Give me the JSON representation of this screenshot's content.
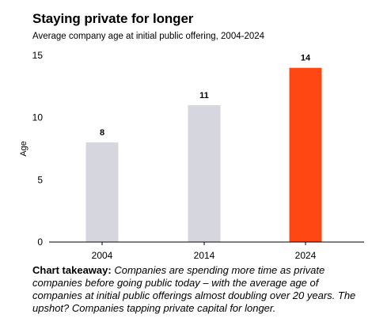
{
  "chart_data": {
    "type": "bar",
    "title": "Staying private for longer",
    "subtitle": "Average company age at initial public offering, 2004-2024",
    "categories": [
      "2004",
      "2014",
      "2024"
    ],
    "values": [
      8,
      11,
      14
    ],
    "data_labels": [
      "8",
      "11",
      "14"
    ],
    "ylabel": "Age",
    "xlabel": "",
    "ylim": [
      0,
      15
    ],
    "yticks": [
      0,
      5,
      10,
      15
    ],
    "grid": false,
    "legend": "none",
    "bar_colors": [
      "#d6d6df",
      "#d6d6df",
      "#ff4713"
    ]
  },
  "takeaway": {
    "lead": "Chart takeaway:",
    "body": " Companies are spending more time as private companies before going public today – with the average age of companies at initial public offerings almost doubling over 20 years. The upshot? Companies tapping private capital for longer."
  }
}
